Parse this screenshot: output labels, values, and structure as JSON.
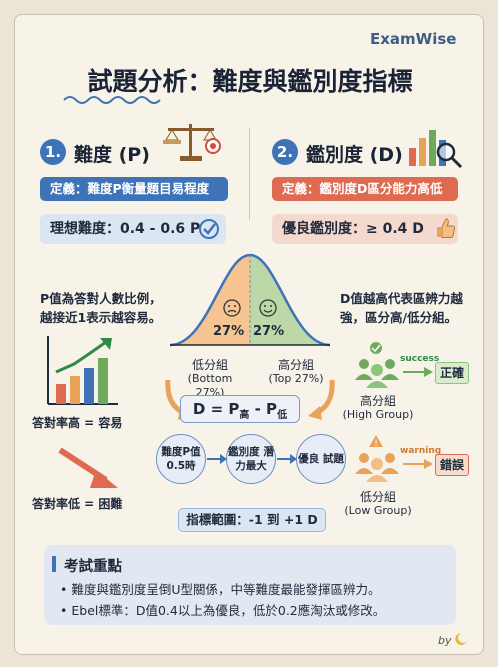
{
  "brand": "ExamWise",
  "title": "試題分析：難度與鑑別度指標",
  "colors": {
    "blue": "#3f73b8",
    "red": "#de6a52",
    "green": "#6faa5c",
    "orange": "#e9a25a",
    "background": "#f8f3e9"
  },
  "difficulty": {
    "number": "1.",
    "heading": "難度 (P)",
    "definition": "定義：難度P衡量題目易程度",
    "ideal": "理想難度：0.4 - 0.6 P",
    "icon": "balance-scale-icon",
    "note_line1": "P值為答對人數比例，",
    "note_line2": "越接近1表示越容易。",
    "easy_label": "答對率高 = 容易",
    "hard_label": "答對率低 = 困難"
  },
  "discrimination": {
    "number": "2.",
    "heading": "鑑別度 (D)",
    "definition": "定義：鑑別度D區分能力高低",
    "ideal": "優良鑑別度：≥ 0.4 D",
    "icon": "bar-chart-magnifier-icon",
    "note_line1": "D值越高代表區辨力越",
    "note_line2": "強，區分高/低分組。"
  },
  "curve": {
    "left_percent": "27%",
    "right_percent": "27%",
    "low_group": "低分組",
    "low_group_sub": "(Bottom 27%)",
    "high_group": "高分組",
    "high_group_sub": "(Top 27%)"
  },
  "formula": {
    "lhs": "D = P",
    "sub_high": "高",
    "minus": " - P",
    "sub_low": "低"
  },
  "flow": {
    "step1": "難度P值 0.5時",
    "step2": "鑑別度 潛力最大",
    "step3": "優良 試題"
  },
  "range": "指標範圍：-1 到 +1 D",
  "high_group": {
    "label": "高分組",
    "sub": "(High Group)",
    "tag": "success",
    "verdict": "正確"
  },
  "low_group": {
    "label": "低分組",
    "sub": "(Low Group)",
    "tag": "warning",
    "verdict": "錯誤"
  },
  "key_points": {
    "title": "考試重點",
    "items": [
      "難度與鑑別度呈倒U型關係，中等難度最能發揮區辨力。",
      "Ebel標準：D值0.4以上為優良，低於0.2應淘汰或修改。"
    ]
  },
  "signature": "by"
}
